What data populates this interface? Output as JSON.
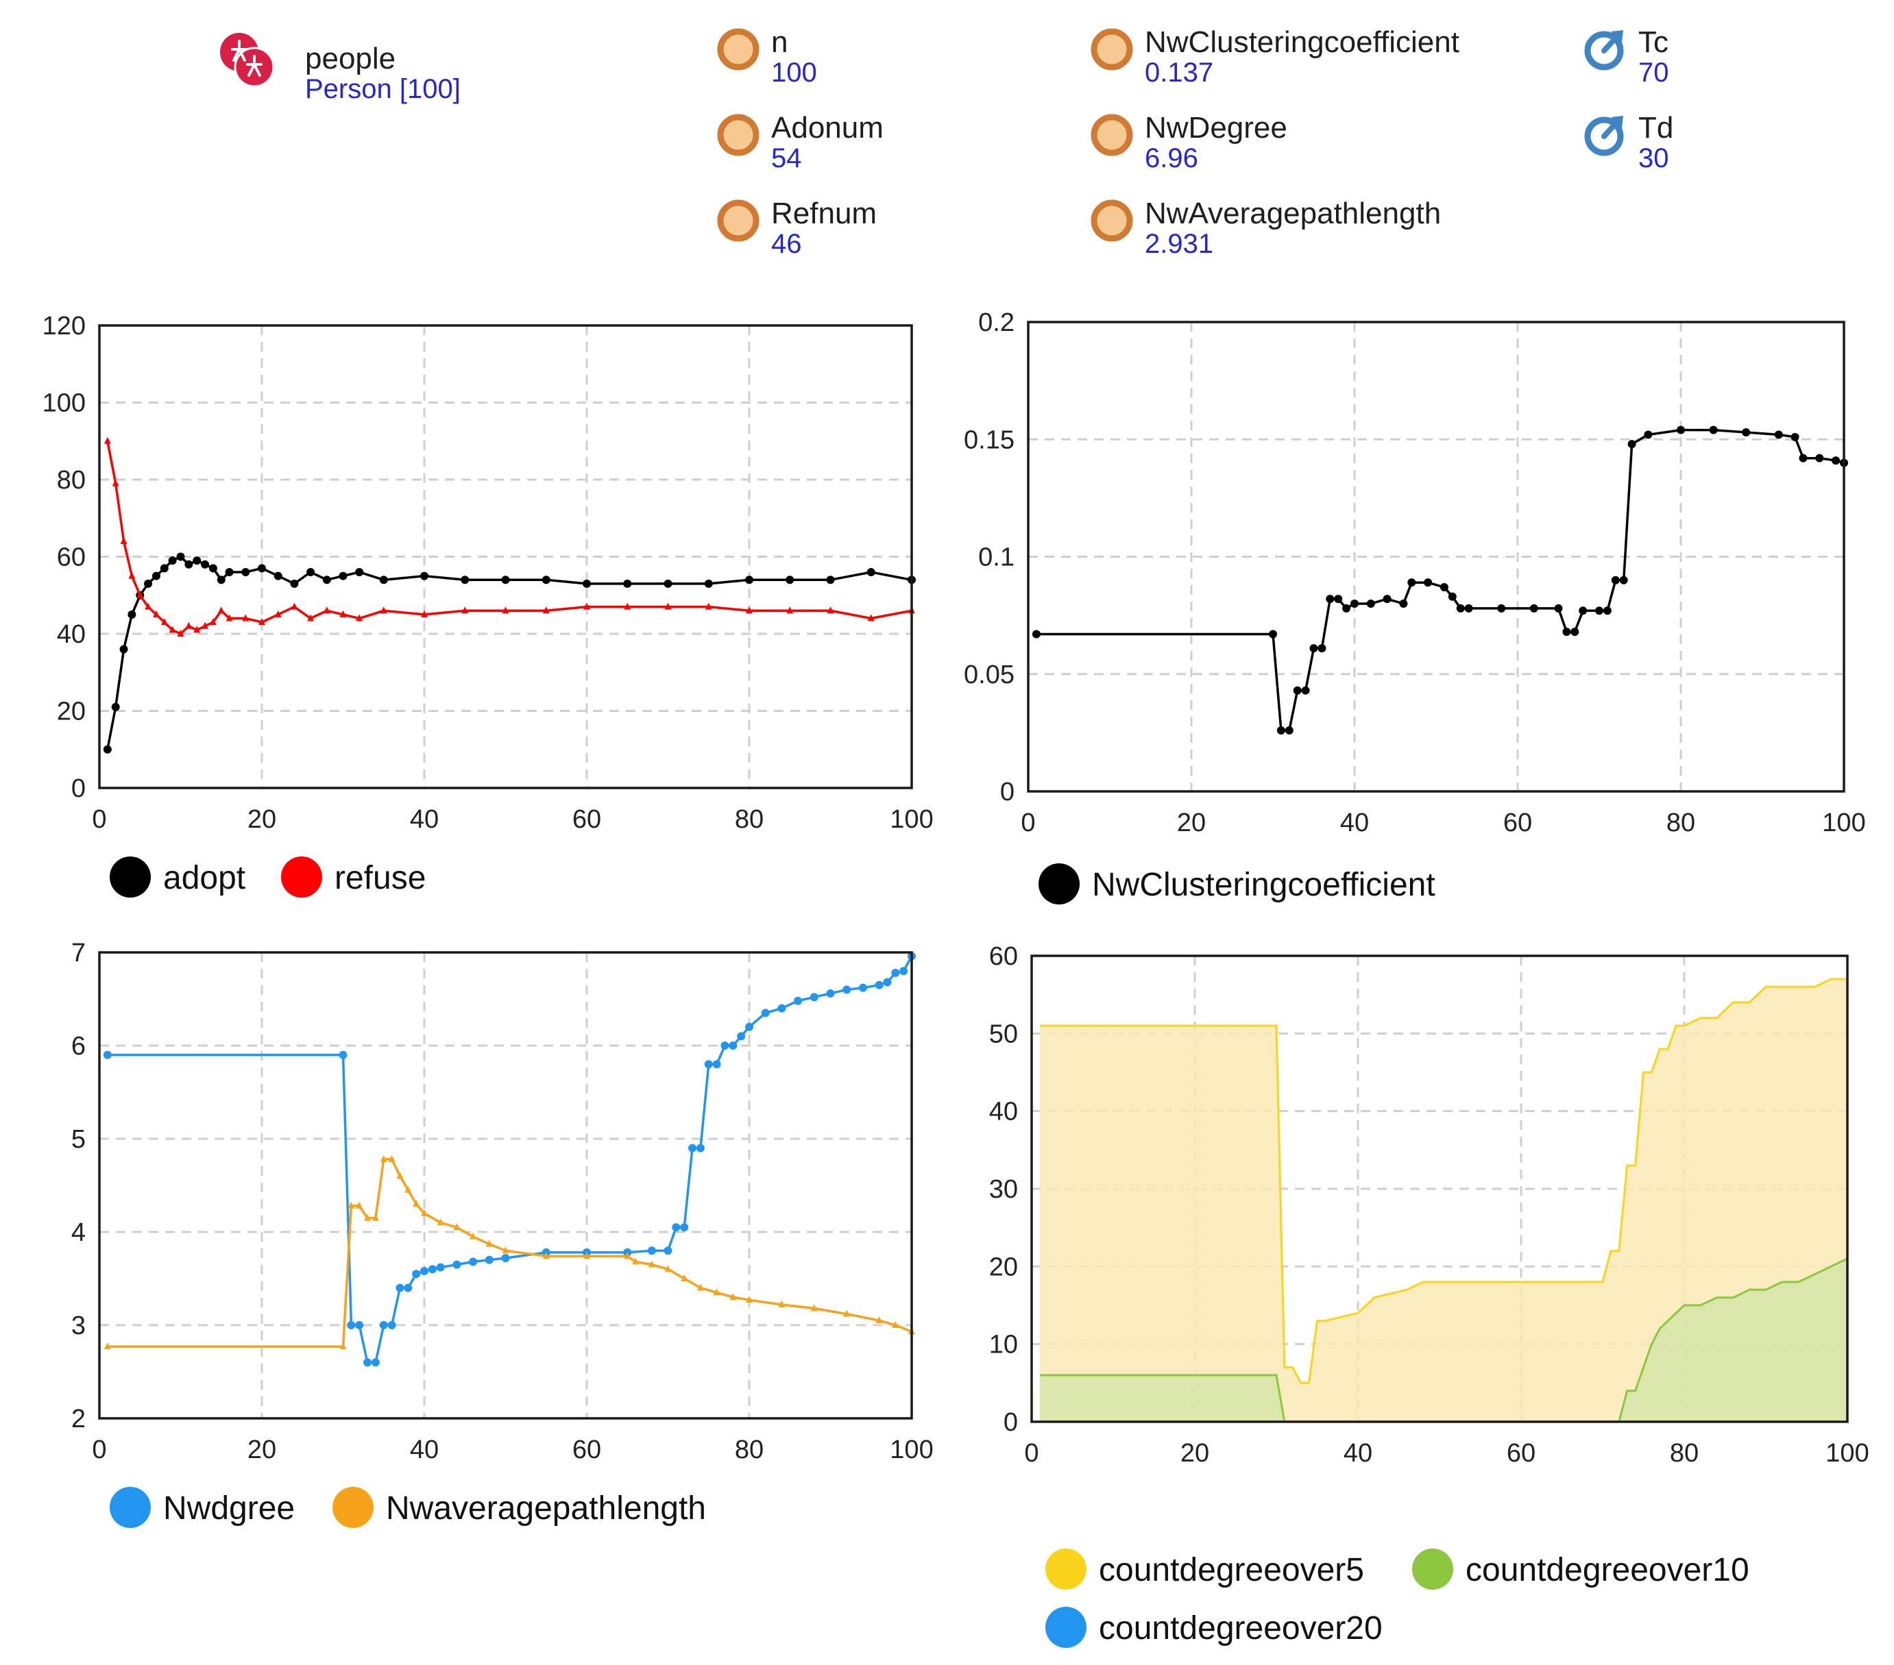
{
  "agents": {
    "icon": "people-icon",
    "name": "people",
    "value": "Person [100]"
  },
  "parameters": [
    {
      "name": "n",
      "value": "100",
      "icon": "parameter-circle-icon"
    },
    {
      "name": "Adonum",
      "value": "54",
      "icon": "parameter-circle-icon"
    },
    {
      "name": "Refnum",
      "value": "46",
      "icon": "parameter-circle-icon"
    },
    {
      "name": "NwClusteringcoefficient",
      "value": "0.137",
      "icon": "parameter-circle-icon"
    },
    {
      "name": "NwDegree",
      "value": "6.96",
      "icon": "parameter-circle-icon"
    },
    {
      "name": "NwAveragepathlength",
      "value": "2.931",
      "icon": "parameter-circle-icon"
    },
    {
      "name": "Tc",
      "value": "70",
      "icon": "timer-icon"
    },
    {
      "name": "Td",
      "value": "30",
      "icon": "timer-icon"
    }
  ],
  "colors": {
    "param_ring": "#d07a34",
    "param_fill": "#f6c892",
    "timer": "#3f84c4",
    "value_text": "#2626d0",
    "people_icon": "#d81f45",
    "grid": "#cfcfcf"
  },
  "chart_data": [
    {
      "type": "line",
      "name": "adopt-refuse-chart",
      "xlim": [
        0,
        100
      ],
      "ylim": [
        0,
        120
      ],
      "xticks": [
        "0",
        "20",
        "40",
        "60",
        "80",
        "100"
      ],
      "yticks": [
        "0",
        "20",
        "40",
        "60",
        "80",
        "100",
        "120"
      ],
      "series": [
        {
          "name": "adopt",
          "color": "#000000",
          "marker": "dot",
          "x": [
            1,
            2,
            3,
            4,
            5,
            6,
            7,
            8,
            9,
            10,
            11,
            12,
            13,
            14,
            15,
            16,
            18,
            20,
            22,
            24,
            26,
            28,
            30,
            32,
            35,
            40,
            45,
            50,
            55,
            60,
            65,
            70,
            75,
            80,
            85,
            90,
            95,
            100
          ],
          "y": [
            10,
            21,
            36,
            45,
            50,
            53,
            55,
            57,
            59,
            60,
            58,
            59,
            58,
            57,
            54,
            56,
            56,
            57,
            55,
            53,
            56,
            54,
            55,
            56,
            54,
            55,
            54,
            54,
            54,
            53,
            53,
            53,
            53,
            54,
            54,
            54,
            56,
            54
          ]
        },
        {
          "name": "refuse",
          "color": "#ff0000",
          "marker": "triangle",
          "x": [
            1,
            2,
            3,
            4,
            5,
            6,
            7,
            8,
            9,
            10,
            11,
            12,
            13,
            14,
            15,
            16,
            18,
            20,
            22,
            24,
            26,
            28,
            30,
            32,
            35,
            40,
            45,
            50,
            55,
            60,
            65,
            70,
            75,
            80,
            85,
            90,
            95,
            100
          ],
          "y": [
            90,
            79,
            64,
            55,
            50,
            47,
            45,
            43,
            41,
            40,
            42,
            41,
            42,
            43,
            46,
            44,
            44,
            43,
            45,
            47,
            44,
            46,
            45,
            44,
            46,
            45,
            46,
            46,
            46,
            47,
            47,
            47,
            47,
            46,
            46,
            46,
            44,
            46
          ]
        }
      ],
      "legend": [
        "adopt",
        "refuse"
      ]
    },
    {
      "type": "line",
      "name": "clustering-coefficient-chart",
      "xlim": [
        0,
        100
      ],
      "ylim": [
        0,
        0.2
      ],
      "xticks": [
        "0",
        "20",
        "40",
        "60",
        "80",
        "100"
      ],
      "yticks": [
        "0",
        "0.05",
        "0.1",
        "0.15",
        "0.2"
      ],
      "series": [
        {
          "name": "NwClusteringcoefficient",
          "color": "#000000",
          "marker": "dot",
          "x": [
            1,
            30,
            31,
            32,
            33,
            34,
            35,
            36,
            37,
            38,
            39,
            40,
            42,
            44,
            46,
            47,
            49,
            51,
            52,
            53,
            54,
            58,
            62,
            65,
            66,
            67,
            68,
            70,
            71,
            72,
            73,
            74,
            76,
            80,
            84,
            88,
            92,
            94,
            95,
            97,
            99,
            100
          ],
          "y": [
            0.067,
            0.067,
            0.026,
            0.026,
            0.043,
            0.043,
            0.061,
            0.061,
            0.082,
            0.082,
            0.078,
            0.08,
            0.08,
            0.082,
            0.08,
            0.089,
            0.089,
            0.087,
            0.083,
            0.078,
            0.078,
            0.078,
            0.078,
            0.078,
            0.068,
            0.068,
            0.077,
            0.077,
            0.077,
            0.09,
            0.09,
            0.148,
            0.152,
            0.154,
            0.154,
            0.153,
            0.152,
            0.151,
            0.142,
            0.142,
            0.141,
            0.14
          ]
        }
      ],
      "legend": [
        "NwClusteringcoefficient"
      ]
    },
    {
      "type": "line",
      "name": "degree-pathlength-chart",
      "xlim": [
        0,
        100
      ],
      "ylim": [
        2,
        7
      ],
      "xticks": [
        "0",
        "20",
        "40",
        "60",
        "80",
        "100"
      ],
      "yticks": [
        "2",
        "3",
        "4",
        "5",
        "6",
        "7"
      ],
      "series": [
        {
          "name": "Nwdgree",
          "color": "#2296ee",
          "marker": "dot",
          "x": [
            1,
            30,
            31,
            32,
            33,
            34,
            35,
            36,
            37,
            38,
            39,
            40,
            41,
            42,
            44,
            46,
            48,
            50,
            55,
            60,
            65,
            68,
            70,
            71,
            72,
            73,
            74,
            75,
            76,
            77,
            78,
            79,
            80,
            82,
            84,
            86,
            88,
            90,
            92,
            94,
            96,
            97,
            98,
            99,
            100
          ],
          "y": [
            5.9,
            5.9,
            3.0,
            3.0,
            2.6,
            2.6,
            3.0,
            3.0,
            3.4,
            3.4,
            3.55,
            3.58,
            3.6,
            3.62,
            3.65,
            3.68,
            3.7,
            3.72,
            3.78,
            3.78,
            3.78,
            3.8,
            3.8,
            4.05,
            4.05,
            4.9,
            4.9,
            5.8,
            5.8,
            6.0,
            6.0,
            6.1,
            6.2,
            6.35,
            6.4,
            6.48,
            6.52,
            6.56,
            6.6,
            6.62,
            6.65,
            6.68,
            6.78,
            6.8,
            6.96
          ]
        },
        {
          "name": "Nwaveragepathlength",
          "color": "#f7a21b",
          "marker": "triangle",
          "x": [
            1,
            30,
            31,
            32,
            33,
            34,
            35,
            36,
            37,
            38,
            39,
            40,
            42,
            44,
            46,
            48,
            50,
            55,
            60,
            65,
            66,
            68,
            70,
            72,
            74,
            76,
            78,
            80,
            84,
            88,
            92,
            96,
            98,
            100
          ],
          "y": [
            2.77,
            2.77,
            4.28,
            4.28,
            4.15,
            4.15,
            4.78,
            4.78,
            4.6,
            4.45,
            4.3,
            4.2,
            4.1,
            4.05,
            3.95,
            3.87,
            3.8,
            3.74,
            3.74,
            3.74,
            3.68,
            3.65,
            3.6,
            3.5,
            3.4,
            3.35,
            3.3,
            3.27,
            3.22,
            3.18,
            3.12,
            3.05,
            3.0,
            2.93
          ]
        }
      ],
      "legend": [
        "Nwdgree",
        "Nwaveragepathlength"
      ]
    },
    {
      "type": "area",
      "name": "degree-count-chart",
      "xlim": [
        0,
        100
      ],
      "ylim": [
        0,
        60
      ],
      "xticks": [
        "0",
        "20",
        "40",
        "60",
        "80",
        "100"
      ],
      "yticks": [
        "0",
        "10",
        "20",
        "30",
        "40",
        "50",
        "60"
      ],
      "series": [
        {
          "name": "countdegreeover5",
          "color": "#f9d31c",
          "fill": "#f9e9b4",
          "x": [
            1,
            30,
            31,
            32,
            33,
            34,
            35,
            36,
            40,
            42,
            46,
            48,
            52,
            58,
            62,
            70,
            71,
            72,
            73,
            74,
            75,
            76,
            77,
            78,
            79,
            80,
            82,
            84,
            86,
            88,
            90,
            92,
            96,
            98,
            100
          ],
          "y": [
            51,
            51,
            7,
            7,
            5,
            5,
            13,
            13,
            14,
            16,
            17,
            18,
            18,
            18,
            18,
            18,
            22,
            22,
            33,
            33,
            45,
            45,
            48,
            48,
            51,
            51,
            52,
            52,
            54,
            54,
            56,
            56,
            56,
            57,
            57
          ]
        },
        {
          "name": "countdegreeover10",
          "color": "#8dc63f",
          "fill": "#d5e6a6",
          "x": [
            1,
            30,
            31,
            71,
            72,
            73,
            74,
            75,
            76,
            77,
            78,
            79,
            80,
            82,
            84,
            86,
            88,
            90,
            92,
            94,
            96,
            98,
            100
          ],
          "y": [
            6,
            6,
            0,
            0,
            0,
            4,
            4,
            7,
            10,
            12,
            13,
            14,
            15,
            15,
            16,
            16,
            17,
            17,
            18,
            18,
            19,
            20,
            21
          ]
        },
        {
          "name": "countdegreeover20",
          "color": "#2296ee",
          "fill": "#cbe4fb",
          "x": [
            1,
            100
          ],
          "y": [
            0,
            0
          ]
        }
      ],
      "legend": [
        "countdegreeover5",
        "countdegreeover10",
        "countdegreeover20"
      ]
    }
  ]
}
